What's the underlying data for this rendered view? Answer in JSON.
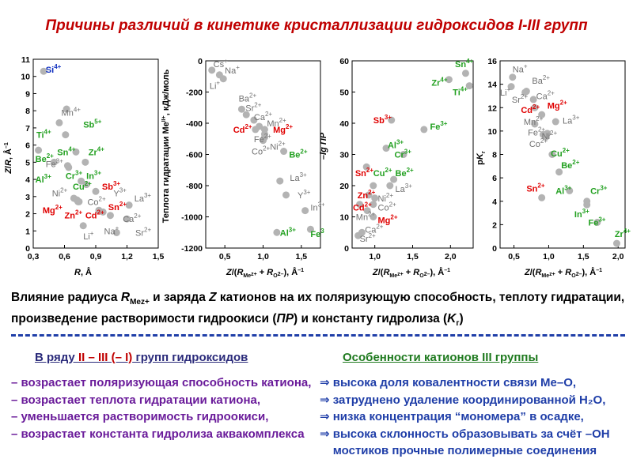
{
  "title": "Причины различий в кинетике кристаллизации гидроксидов I-III групп",
  "caption": {
    "line1_a": "Влияние радиуса ",
    "R": "R",
    "Me_sub": "Mez+",
    "line1_b": "и заряда ",
    "Z": "Z",
    "line1_c": "катионов на их поляризующую способность, теплоту гидратации,",
    "line2_a": "произведение растворимости гидроокиси (",
    "PR": "ПР",
    "line2_b": ") и константу гидролиза (",
    "K": "K",
    "Kg_sub": "г",
    "line2_c": ")"
  },
  "left_section": {
    "heading_pre": "В ряду ",
    "heading_roman": "II – III (– I)",
    "heading_post": " групп гидроксидов",
    "items": [
      "– возрастает поляризующая способность катиона,",
      "– возрастает теплота гидратации катиона,",
      "– уменьшается растворимость гидроокиси,",
      "– возрастает константа гидролиза аквакомплекса"
    ]
  },
  "right_section": {
    "heading": "Особенности катионов III группы",
    "items": [
      "высока доля ковалентности связи Ме–О,",
      "затруднено удаление координированной H₂O,",
      "низка концентрация “мономера” в осадке,",
      "высока склонность образовывать за счёт –OH",
      "мостиков прочные полимерные соединения"
    ]
  },
  "colors": {
    "red": "#e00000",
    "green": "#22a020",
    "blue": "#1030c0",
    "gray": "#707070",
    "point": "#b3b3b3"
  },
  "chart_data": [
    {
      "id": "c1",
      "type": "scatter",
      "xlabel": "R,  Å",
      "ylabel": "Z/R,  Å⁻¹",
      "xlim": [
        0.3,
        1.5
      ],
      "ylim": [
        0,
        11
      ],
      "xticks": [
        0.3,
        0.6,
        0.9,
        1.2,
        1.5
      ],
      "xtick_labels": [
        "0,3",
        "0,6",
        "0,9",
        "1,2",
        "1,5"
      ],
      "yticks": [
        0,
        1,
        2,
        3,
        4,
        5,
        6,
        7,
        8,
        9,
        10,
        11
      ],
      "ytick_labels": [
        "0",
        "1",
        "2",
        "3",
        "4",
        "5",
        "6",
        "7",
        "8",
        "9",
        "10",
        "11"
      ],
      "points": [
        {
          "label": "Si4+",
          "x": 0.4,
          "y": 10.3,
          "c": "blue",
          "lx": 0.42,
          "ly": 10.4
        },
        {
          "label": "Mn4+",
          "x": 0.55,
          "y": 7.3,
          "c": "gray",
          "lx": 0.57,
          "ly": 7.9
        },
        {
          "label": "Ti4+",
          "x": 0.61,
          "y": 6.6,
          "c": "green",
          "lx": 0.33,
          "ly": 6.6
        },
        {
          "label": "Sb5+",
          "x": 0.62,
          "y": 8.1,
          "c": "green",
          "lx": 0.78,
          "ly": 7.2
        },
        {
          "label": "Sn4+",
          "x": 0.71,
          "y": 5.6,
          "c": "green",
          "lx": 0.53,
          "ly": 5.6
        },
        {
          "label": "Zr4+",
          "x": 0.8,
          "y": 5.0,
          "c": "green",
          "lx": 0.83,
          "ly": 5.6
        },
        {
          "label": "Be2+",
          "x": 0.35,
          "y": 5.7,
          "c": "green",
          "lx": 0.32,
          "ly": 5.2
        },
        {
          "label": "Fe3+",
          "x": 0.64,
          "y": 4.7,
          "c": "gray",
          "lx": 0.42,
          "ly": 4.9
        },
        {
          "label": "Cr3+",
          "x": 0.63,
          "y": 4.8,
          "c": "green",
          "lx": 0.61,
          "ly": 4.2
        },
        {
          "label": "In3+",
          "x": 0.81,
          "y": 3.7,
          "c": "green",
          "lx": 0.81,
          "ly": 4.2
        },
        {
          "label": "Al3+",
          "x": 0.5,
          "y": 5.0,
          "c": "green",
          "lx": 0.32,
          "ly": 4.0
        },
        {
          "label": "Cu2+",
          "x": 0.73,
          "y": 2.7,
          "c": "green",
          "lx": 0.68,
          "ly": 3.6
        },
        {
          "label": "Sb3+",
          "x": 0.76,
          "y": 3.9,
          "c": "red",
          "lx": 0.96,
          "ly": 3.6
        },
        {
          "label": "Ni2+",
          "x": 0.69,
          "y": 2.9,
          "c": "gray",
          "lx": 0.48,
          "ly": 3.2
        },
        {
          "label": "Y3+",
          "x": 0.9,
          "y": 3.3,
          "c": "gray",
          "lx": 1.07,
          "ly": 3.2
        },
        {
          "label": "Co2+",
          "x": 0.72,
          "y": 2.8,
          "c": "gray",
          "lx": 0.82,
          "ly": 2.7
        },
        {
          "label": "Sn2+",
          "x": 0.93,
          "y": 2.2,
          "c": "red",
          "lx": 1.02,
          "ly": 2.4
        },
        {
          "label": "Mg2+",
          "x": 0.72,
          "y": 2.8,
          "c": "red",
          "lx": 0.39,
          "ly": 2.2
        },
        {
          "label": "Zn2+",
          "x": 0.74,
          "y": 2.7,
          "c": "red",
          "lx": 0.6,
          "ly": 1.9
        },
        {
          "label": "Cd2+",
          "x": 0.97,
          "y": 2.1,
          "c": "red",
          "lx": 0.8,
          "ly": 1.9
        },
        {
          "label": "La3+",
          "x": 1.22,
          "y": 2.5,
          "c": "gray",
          "lx": 1.27,
          "ly": 2.9
        },
        {
          "label": "Ca2+",
          "x": 1.04,
          "y": 1.9,
          "c": "gray",
          "lx": 1.16,
          "ly": 1.7
        },
        {
          "label": "Sr2+",
          "x": 1.2,
          "y": 1.7,
          "c": "gray",
          "lx": 1.28,
          "ly": 0.9
        },
        {
          "label": "Na+",
          "x": 1.1,
          "y": 0.9,
          "c": "gray",
          "lx": 0.98,
          "ly": 1.0
        },
        {
          "label": "Li+",
          "x": 0.78,
          "y": 1.3,
          "c": "gray",
          "lx": 0.78,
          "ly": 0.7
        }
      ]
    },
    {
      "id": "c2",
      "type": "scatter",
      "xlabel": "Z/(RMe z+ + RO2–),  Å⁻¹",
      "ylabel": "Теплота гидратации MeII+, кДж/моль",
      "xlim": [
        0.25,
        1.75
      ],
      "ylim": [
        -1200,
        0
      ],
      "xticks": [
        0.5,
        1.0,
        1.5
      ],
      "xtick_labels": [
        "0,5",
        "1,0",
        "1,5"
      ],
      "yticks": [
        0,
        -200,
        -400,
        -600,
        -800,
        -1000,
        -1200
      ],
      "ytick_labels": [
        "0",
        "-200",
        "-400",
        "-600",
        "-800",
        "-1000",
        "-1200"
      ],
      "points": [
        {
          "label": "Cs+",
          "x": 0.33,
          "y": -60,
          "c": "gray",
          "lx": 0.35,
          "ly": -20
        },
        {
          "label": "Na+",
          "x": 0.43,
          "y": -90,
          "c": "gray",
          "lx": 0.5,
          "ly": -60
        },
        {
          "label": "Li+",
          "x": 0.48,
          "y": -115,
          "c": "gray",
          "lx": 0.3,
          "ly": -160
        },
        {
          "label": "Ba2+",
          "x": 0.72,
          "y": -310,
          "c": "gray",
          "lx": 0.68,
          "ly": -240
        },
        {
          "label": "Sr2+",
          "x": 0.78,
          "y": -345,
          "c": "gray",
          "lx": 0.77,
          "ly": -300
        },
        {
          "label": "Ca2+",
          "x": 0.88,
          "y": -380,
          "c": "gray",
          "lx": 0.88,
          "ly": -360
        },
        {
          "label": "Mn2+",
          "x": 0.95,
          "y": -420,
          "c": "gray",
          "lx": 1.05,
          "ly": -400
        },
        {
          "label": "Cd2+",
          "x": 0.9,
          "y": -440,
          "c": "red",
          "lx": 0.61,
          "ly": -440
        },
        {
          "label": "Mg2+",
          "x": 1.02,
          "y": -440,
          "c": "red",
          "lx": 1.13,
          "ly": -440
        },
        {
          "label": "Fe2+",
          "x": 1.02,
          "y": -470,
          "c": "gray",
          "lx": 0.88,
          "ly": -500
        },
        {
          "label": "Ni2+",
          "x": 1.02,
          "y": -490,
          "c": "gray",
          "lx": 1.09,
          "ly": -550
        },
        {
          "label": "Co2+",
          "x": 1.0,
          "y": -510,
          "c": "gray",
          "lx": 0.85,
          "ly": -580
        },
        {
          "label": "Be2+",
          "x": 1.27,
          "y": -580,
          "c": "green",
          "lx": 1.34,
          "ly": -600
        },
        {
          "label": "La3+",
          "x": 1.22,
          "y": -770,
          "c": "gray",
          "lx": 1.35,
          "ly": -750
        },
        {
          "label": "Y3+",
          "x": 1.3,
          "y": -860,
          "c": "gray",
          "lx": 1.45,
          "ly": -860
        },
        {
          "label": "In3+",
          "x": 1.55,
          "y": -960,
          "c": "gray",
          "lx": 1.62,
          "ly": -940
        },
        {
          "label": "Fe3+",
          "x": 1.62,
          "y": -1080,
          "c": "green",
          "lx": 1.62,
          "ly": -1110
        },
        {
          "label": "Al3+",
          "x": 1.18,
          "y": -1100,
          "c": "green",
          "lx": 1.22,
          "ly": -1100
        }
      ]
    },
    {
      "id": "c3",
      "type": "scatter",
      "xlabel": "Z/(RMe z+ + RO2–),  Å⁻¹",
      "ylabel": "–lg ПР",
      "xlim": [
        0.7,
        2.3
      ],
      "ylim": [
        0,
        60
      ],
      "xticks": [
        1.0,
        1.5,
        2.0
      ],
      "xtick_labels": [
        "1,0",
        "1,5",
        "2,0"
      ],
      "yticks": [
        0,
        10,
        20,
        30,
        40,
        50,
        60
      ],
      "ytick_labels": [
        "0",
        "10",
        "20",
        "30",
        "40",
        "50",
        "60"
      ],
      "points": [
        {
          "label": "Sn4+",
          "x": 2.2,
          "y": 56,
          "c": "green",
          "lx": 2.06,
          "ly": 59
        },
        {
          "label": "Zr4+",
          "x": 1.98,
          "y": 54,
          "c": "green",
          "lx": 1.75,
          "ly": 53
        },
        {
          "label": "Ti4+",
          "x": 2.25,
          "y": 52,
          "c": "green",
          "lx": 2.03,
          "ly": 50
        },
        {
          "label": "Fe3+",
          "x": 1.65,
          "y": 38,
          "c": "green",
          "lx": 1.73,
          "ly": 39
        },
        {
          "label": "Sb3+",
          "x": 1.22,
          "y": 41,
          "c": "red",
          "lx": 0.98,
          "ly": 41
        },
        {
          "label": "Al3+",
          "x": 1.15,
          "y": 32,
          "c": "green",
          "lx": 1.17,
          "ly": 33
        },
        {
          "label": "Cr3+",
          "x": 1.38,
          "y": 30,
          "c": "green",
          "lx": 1.26,
          "ly": 30
        },
        {
          "label": "Sn2+",
          "x": 0.89,
          "y": 26,
          "c": "red",
          "lx": 0.74,
          "ly": 24
        },
        {
          "label": "Cu2+",
          "x": 0.98,
          "y": 20,
          "c": "green",
          "lx": 0.98,
          "ly": 24
        },
        {
          "label": "Be2+",
          "x": 1.25,
          "y": 22,
          "c": "green",
          "lx": 1.27,
          "ly": 24
        },
        {
          "label": "La3+",
          "x": 1.2,
          "y": 20,
          "c": "gray",
          "lx": 1.27,
          "ly": 19
        },
        {
          "label": "Zn2+",
          "x": 0.92,
          "y": 17,
          "c": "red",
          "lx": 0.77,
          "ly": 17
        },
        {
          "label": "Ni2+",
          "x": 1.0,
          "y": 16,
          "c": "gray",
          "lx": 1.04,
          "ly": 16
        },
        {
          "label": "Cd2+",
          "x": 0.8,
          "y": 14,
          "c": "red",
          "lx": 0.71,
          "ly": 13
        },
        {
          "label": "Co2+",
          "x": 0.98,
          "y": 14,
          "c": "gray",
          "lx": 1.04,
          "ly": 13
        },
        {
          "label": "Mn2+",
          "x": 0.9,
          "y": 12,
          "c": "gray",
          "lx": 0.75,
          "ly": 10
        },
        {
          "label": "Mg2+",
          "x": 0.98,
          "y": 10,
          "c": "red",
          "lx": 1.04,
          "ly": 9
        },
        {
          "label": "Ca2+",
          "x": 0.83,
          "y": 5,
          "c": "gray",
          "lx": 0.87,
          "ly": 6
        },
        {
          "label": "Sr2+",
          "x": 0.78,
          "y": 4,
          "c": "gray",
          "lx": 0.8,
          "ly": 3
        }
      ]
    },
    {
      "id": "c4",
      "type": "scatter",
      "xlabel": "Z/(RMe z+ + RO2–),  Å⁻¹",
      "ylabel": "pKг",
      "xlim": [
        0.3,
        2.1
      ],
      "ylim": [
        0,
        16
      ],
      "xticks": [
        0.5,
        1.0,
        1.5,
        2.0
      ],
      "xtick_labels": [
        "0,5",
        "1,0",
        "1,5",
        "2,0"
      ],
      "yticks": [
        0,
        2,
        4,
        6,
        8,
        10,
        12,
        14,
        16
      ],
      "ytick_labels": [
        "0",
        "2",
        "4",
        "6",
        "8",
        "10",
        "12",
        "14",
        "16"
      ],
      "points": [
        {
          "label": "Na+",
          "x": 0.48,
          "y": 14.6,
          "c": "gray",
          "lx": 0.48,
          "ly": 15.3
        },
        {
          "label": "Ba2+",
          "x": 0.68,
          "y": 13.4,
          "c": "gray",
          "lx": 0.76,
          "ly": 14.3
        },
        {
          "label": "Li+",
          "x": 0.46,
          "y": 13.8,
          "c": "gray",
          "lx": 0.3,
          "ly": 13.3
        },
        {
          "label": "Sr2+",
          "x": 0.66,
          "y": 13.3,
          "c": "gray",
          "lx": 0.47,
          "ly": 12.7
        },
        {
          "label": "Ca2+",
          "x": 0.78,
          "y": 12.7,
          "c": "gray",
          "lx": 0.82,
          "ly": 13.0
        },
        {
          "label": "Cd2+",
          "x": 0.8,
          "y": 12.0,
          "c": "red",
          "lx": 0.6,
          "ly": 11.8
        },
        {
          "label": "Mg2+",
          "x": 0.9,
          "y": 11.4,
          "c": "red",
          "lx": 0.98,
          "ly": 12.2
        },
        {
          "label": "Mn2+",
          "x": 0.8,
          "y": 10.6,
          "c": "gray",
          "lx": 0.64,
          "ly": 10.8
        },
        {
          "label": "La3+",
          "x": 1.1,
          "y": 10.8,
          "c": "gray",
          "lx": 1.2,
          "ly": 10.9
        },
        {
          "label": "Fe2+",
          "x": 0.92,
          "y": 9.7,
          "c": "gray",
          "lx": 0.7,
          "ly": 9.9
        },
        {
          "label": "Ni2+",
          "x": 0.98,
          "y": 9.8,
          "c": "gray",
          "lx": 0.9,
          "ly": 9.6
        },
        {
          "label": "Co2+",
          "x": 0.96,
          "y": 9.5,
          "c": "gray",
          "lx": 0.72,
          "ly": 8.9
        },
        {
          "label": "Cu2+",
          "x": 1.05,
          "y": 8.0,
          "c": "green",
          "lx": 1.03,
          "ly": 8.1
        },
        {
          "label": "Be2+",
          "x": 1.15,
          "y": 6.5,
          "c": "green",
          "lx": 1.18,
          "ly": 7.1
        },
        {
          "label": "Sn2+",
          "x": 0.9,
          "y": 4.3,
          "c": "red",
          "lx": 0.68,
          "ly": 5.1
        },
        {
          "label": "Al3+",
          "x": 1.3,
          "y": 4.9,
          "c": "green",
          "lx": 1.1,
          "ly": 4.9
        },
        {
          "label": "Cr3+",
          "x": 1.55,
          "y": 4.0,
          "c": "green",
          "lx": 1.6,
          "ly": 4.9
        },
        {
          "label": "In3+",
          "x": 1.55,
          "y": 3.7,
          "c": "green",
          "lx": 1.37,
          "ly": 2.9
        },
        {
          "label": "Fe3+",
          "x": 1.7,
          "y": 2.2,
          "c": "green",
          "lx": 1.57,
          "ly": 2.2
        },
        {
          "label": "Zr4+",
          "x": 1.98,
          "y": 0.4,
          "c": "green",
          "lx": 1.95,
          "ly": 1.2
        }
      ]
    }
  ]
}
